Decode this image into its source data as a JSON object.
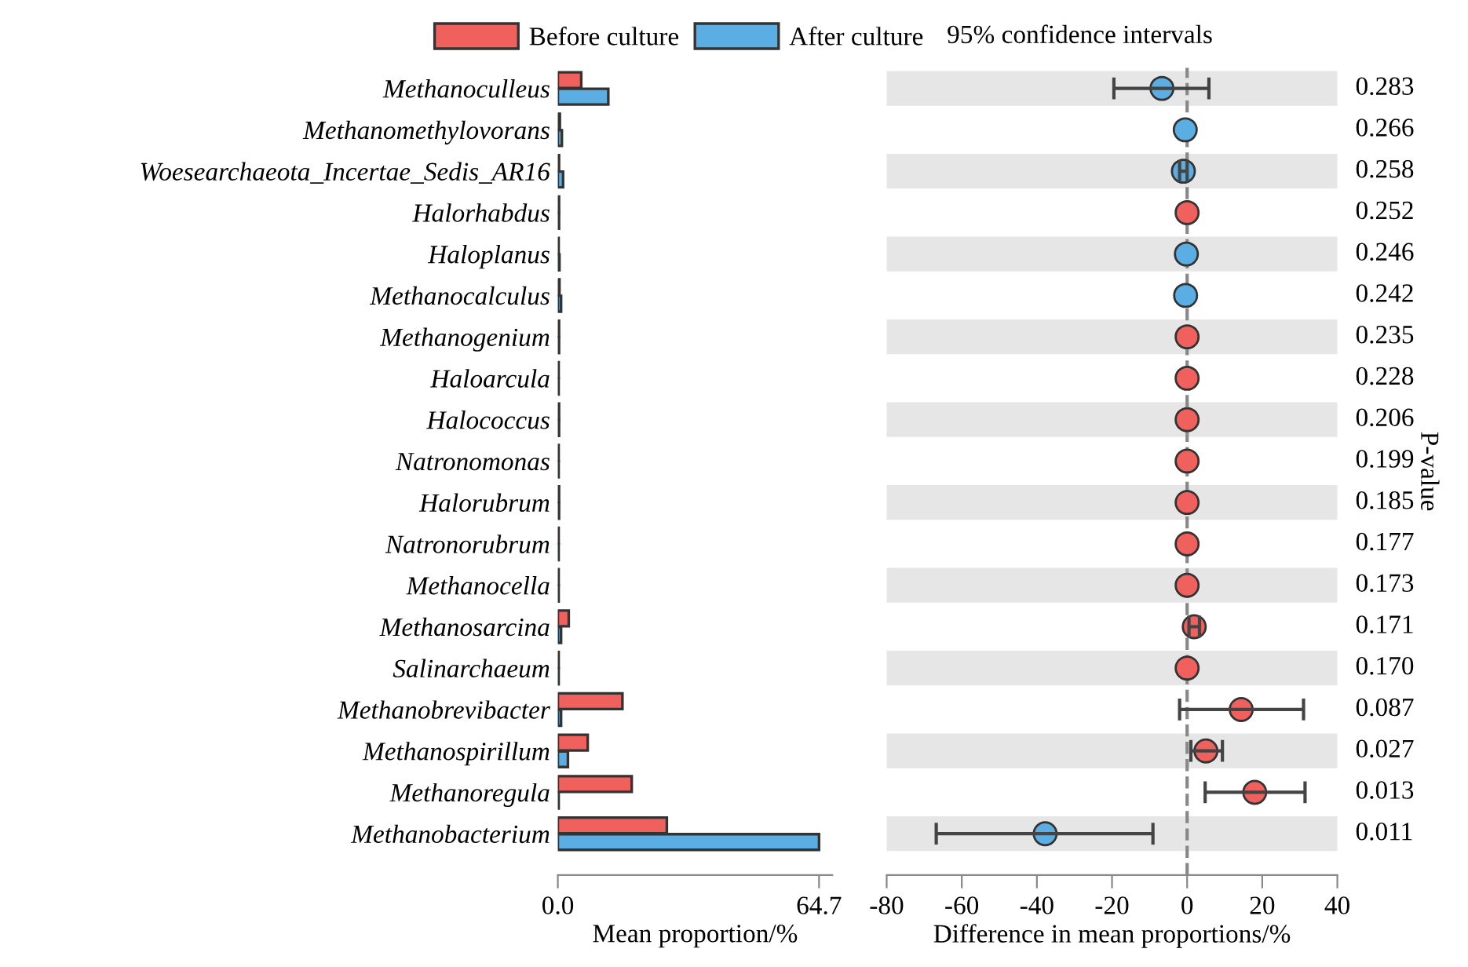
{
  "chart_data": [
    {
      "type": "bar",
      "orientation": "horizontal",
      "xlabel": "Mean proportion/%",
      "legend": "top",
      "categories": [
        "Methanoculleus",
        "Methanomethylovorans",
        "Woesearchaeota_Incertae_Sedis_AR16",
        "Halorhabdus",
        "Haloplanus",
        "Methanocalculus",
        "Methanogenium",
        "Haloarcula",
        "Halococcus",
        "Natronomonas",
        "Halorubrum",
        "Natronorubrum",
        "Methanocella",
        "Methanosarcina",
        "Salinarchaeum",
        "Methanobrevibacter",
        "Methanospirillum",
        "Methanoregula",
        "Methanobacterium"
      ],
      "series": [
        {
          "name": "Before culture",
          "color": "#f0605d",
          "values": [
            5.8,
            0.5,
            0.3,
            0.3,
            0.2,
            0.4,
            0.3,
            0.2,
            0.3,
            0.2,
            0.3,
            0.2,
            0.2,
            2.7,
            0.2,
            16.0,
            7.4,
            18.3,
            27.0
          ]
        },
        {
          "name": "After culture",
          "color": "#5aaee3",
          "values": [
            12.5,
            1.0,
            1.3,
            0.3,
            0.4,
            0.8,
            0.3,
            0.2,
            0.3,
            0.2,
            0.3,
            0.2,
            0.2,
            0.8,
            0.2,
            0.8,
            2.5,
            0.2,
            64.7
          ]
        }
      ],
      "xlim": [
        0,
        68
      ],
      "xticks": [
        {
          "value": 0,
          "label": "0.0"
        },
        64.7
      ],
      "grid": false
    },
    {
      "type": "scatter",
      "orientation": "horizontal",
      "xlabel": "Difference in mean proportions/%",
      "y2label": "P-value",
      "tick_labels": "x",
      "marker": "circle",
      "categories": [
        "Methanoculleus",
        "Methanomethylovorans",
        "Woesearchaeota_Incertae_Sedis_AR16",
        "Halorhabdus",
        "Haloplanus",
        "Methanocalculus",
        "Methanogenium",
        "Haloarcula",
        "Halococcus",
        "Natronomonas",
        "Halorubrum",
        "Natronorubrum",
        "Methanocella",
        "Methanosarcina",
        "Salinarchaeum",
        "Methanobrevibacter",
        "Methanospirillum",
        "Methanoregula",
        "Methanobacterium"
      ],
      "values": [
        -6.7,
        -0.5,
        -1.0,
        0.0,
        -0.2,
        -0.4,
        0.0,
        0.0,
        0.0,
        0.0,
        0.0,
        0.0,
        0.0,
        1.9,
        0.0,
        14.4,
        5.0,
        18.0,
        -37.8
      ],
      "colors": [
        "#5aaee3",
        "#5aaee3",
        "#5aaee3",
        "#f0605d",
        "#5aaee3",
        "#5aaee3",
        "#f0605d",
        "#f0605d",
        "#f0605d",
        "#f0605d",
        "#f0605d",
        "#f0605d",
        "#f0605d",
        "#f0605d",
        "#f0605d",
        "#f0605d",
        "#f0605d",
        "#f0605d",
        "#5aaee3"
      ],
      "errors": [
        [
          -19.5,
          5.8
        ],
        null,
        [
          -2.0,
          0.0
        ],
        null,
        null,
        null,
        null,
        null,
        null,
        null,
        null,
        null,
        null,
        [
          0.5,
          3.3
        ],
        null,
        [
          -2.0,
          31.0
        ],
        [
          1.0,
          9.4
        ],
        [
          4.8,
          31.4
        ],
        [
          -66.8,
          -9.1
        ]
      ],
      "xlim": [
        -80,
        40
      ],
      "xticks": [
        -80,
        -60,
        -40,
        -20,
        0,
        20,
        40
      ],
      "grid": false,
      "ref_lines": [
        {
          "axis": "x",
          "value": 0,
          "color": "#888888",
          "line_style": "dashed"
        }
      ],
      "annotations": [
        "95% confidence intervals",
        "0.283",
        "0.266",
        "0.258",
        "0.252",
        "0.246",
        "0.242",
        "0.235",
        "0.228",
        "0.206",
        "0.199",
        "0.185",
        "0.177",
        "0.173",
        "0.171",
        "0.170",
        "0.087",
        "0.027",
        "0.013",
        "0.011"
      ]
    }
  ]
}
